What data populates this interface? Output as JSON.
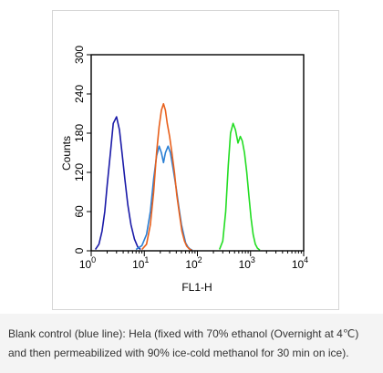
{
  "chart_data": {
    "type": "histogram-overlay",
    "xlabel": "FL1-H",
    "ylabel": "Counts",
    "xscale": "log",
    "xlim": [
      1,
      10000
    ],
    "ylim": [
      0,
      300
    ],
    "x_ticks": [
      {
        "value": 1,
        "base": "10",
        "exp": "0"
      },
      {
        "value": 10,
        "base": "10",
        "exp": "1"
      },
      {
        "value": 100,
        "base": "10",
        "exp": "2"
      },
      {
        "value": 1000,
        "base": "10",
        "exp": "3"
      },
      {
        "value": 10000,
        "base": "10",
        "exp": "4"
      }
    ],
    "y_ticks": [
      "0",
      "60",
      "120",
      "180",
      "240",
      "300"
    ],
    "series": [
      {
        "color": "#1a1aa8",
        "x": [
          1.2,
          1.4,
          1.6,
          1.8,
          2.0,
          2.3,
          2.6,
          3.0,
          3.4,
          3.8,
          4.3,
          4.9,
          5.6,
          6.5,
          7.5,
          8.5
        ],
        "y": [
          2,
          10,
          30,
          60,
          100,
          150,
          195,
          205,
          185,
          150,
          110,
          70,
          40,
          18,
          6,
          2
        ]
      },
      {
        "color": "#2a7fd4",
        "x": [
          7,
          9,
          11,
          13,
          15,
          17,
          19,
          21,
          23,
          25,
          28,
          31,
          35,
          40,
          45,
          50,
          55,
          60,
          66,
          72,
          80
        ],
        "y": [
          2,
          8,
          25,
          60,
          110,
          145,
          160,
          150,
          135,
          150,
          160,
          150,
          125,
          95,
          65,
          40,
          25,
          12,
          6,
          3,
          1
        ]
      },
      {
        "color": "#e8601c",
        "x": [
          9,
          11,
          13,
          15,
          17,
          19,
          21,
          23,
          25,
          27,
          30,
          33,
          37,
          41,
          46,
          51,
          57,
          63,
          70,
          78
        ],
        "y": [
          2,
          10,
          40,
          90,
          150,
          190,
          215,
          225,
          215,
          195,
          175,
          150,
          120,
          85,
          55,
          30,
          15,
          7,
          3,
          1
        ]
      },
      {
        "color": "#22dd22",
        "x": [
          260,
          300,
          340,
          380,
          420,
          470,
          520,
          580,
          640,
          700,
          770,
          850,
          930,
          1020,
          1120,
          1230,
          1350,
          1500
        ],
        "y": [
          2,
          15,
          60,
          130,
          180,
          195,
          185,
          165,
          175,
          168,
          150,
          120,
          85,
          50,
          25,
          10,
          4,
          1
        ]
      }
    ]
  },
  "caption": {
    "text": "Blank control (blue line): Hela (fixed with 70% ethanol (Overnight at 4℃) and then permeabilized with 90% ice-cold methanol for 30 min on ice)."
  }
}
